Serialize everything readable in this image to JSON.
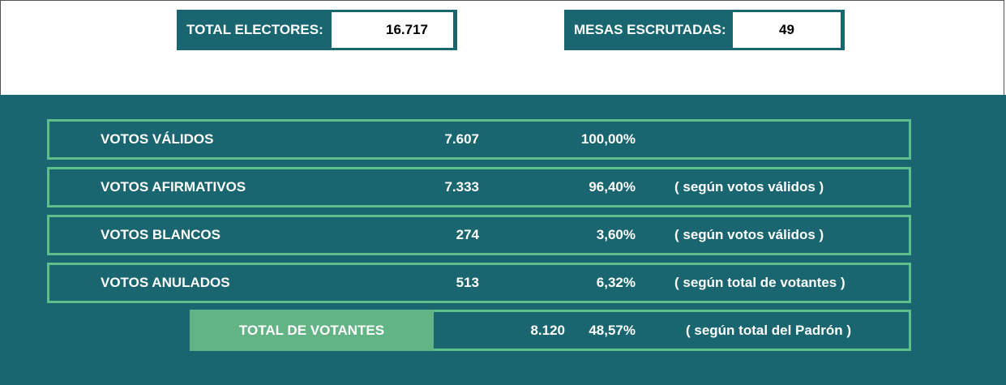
{
  "summary": {
    "electores": {
      "label": "TOTAL ELECTORES:",
      "value": "16.717"
    },
    "mesas": {
      "label": "MESAS ESCRUTADAS:",
      "value": "49"
    }
  },
  "rows": [
    {
      "label": "VOTOS VÁLIDOS",
      "count": "7.607",
      "percent": "100,00%",
      "note": ""
    },
    {
      "label": "VOTOS AFIRMATIVOS",
      "count": "7.333",
      "percent": "96,40%",
      "note": "( según votos válidos )"
    },
    {
      "label": "VOTOS BLANCOS",
      "count": "274",
      "percent": "3,60%",
      "note": "( según votos válidos )"
    },
    {
      "label": "VOTOS ANULADOS",
      "count": "513",
      "percent": "6,32%",
      "note": "( según total de votantes )"
    }
  ],
  "total": {
    "label": "TOTAL DE VOTANTES",
    "count": "8.120",
    "percent": "48,57%",
    "note": "( según total del Padrón )"
  },
  "colors": {
    "teal": "#196670",
    "green_border": "#5fbf8a",
    "green_fill": "#62b386"
  }
}
